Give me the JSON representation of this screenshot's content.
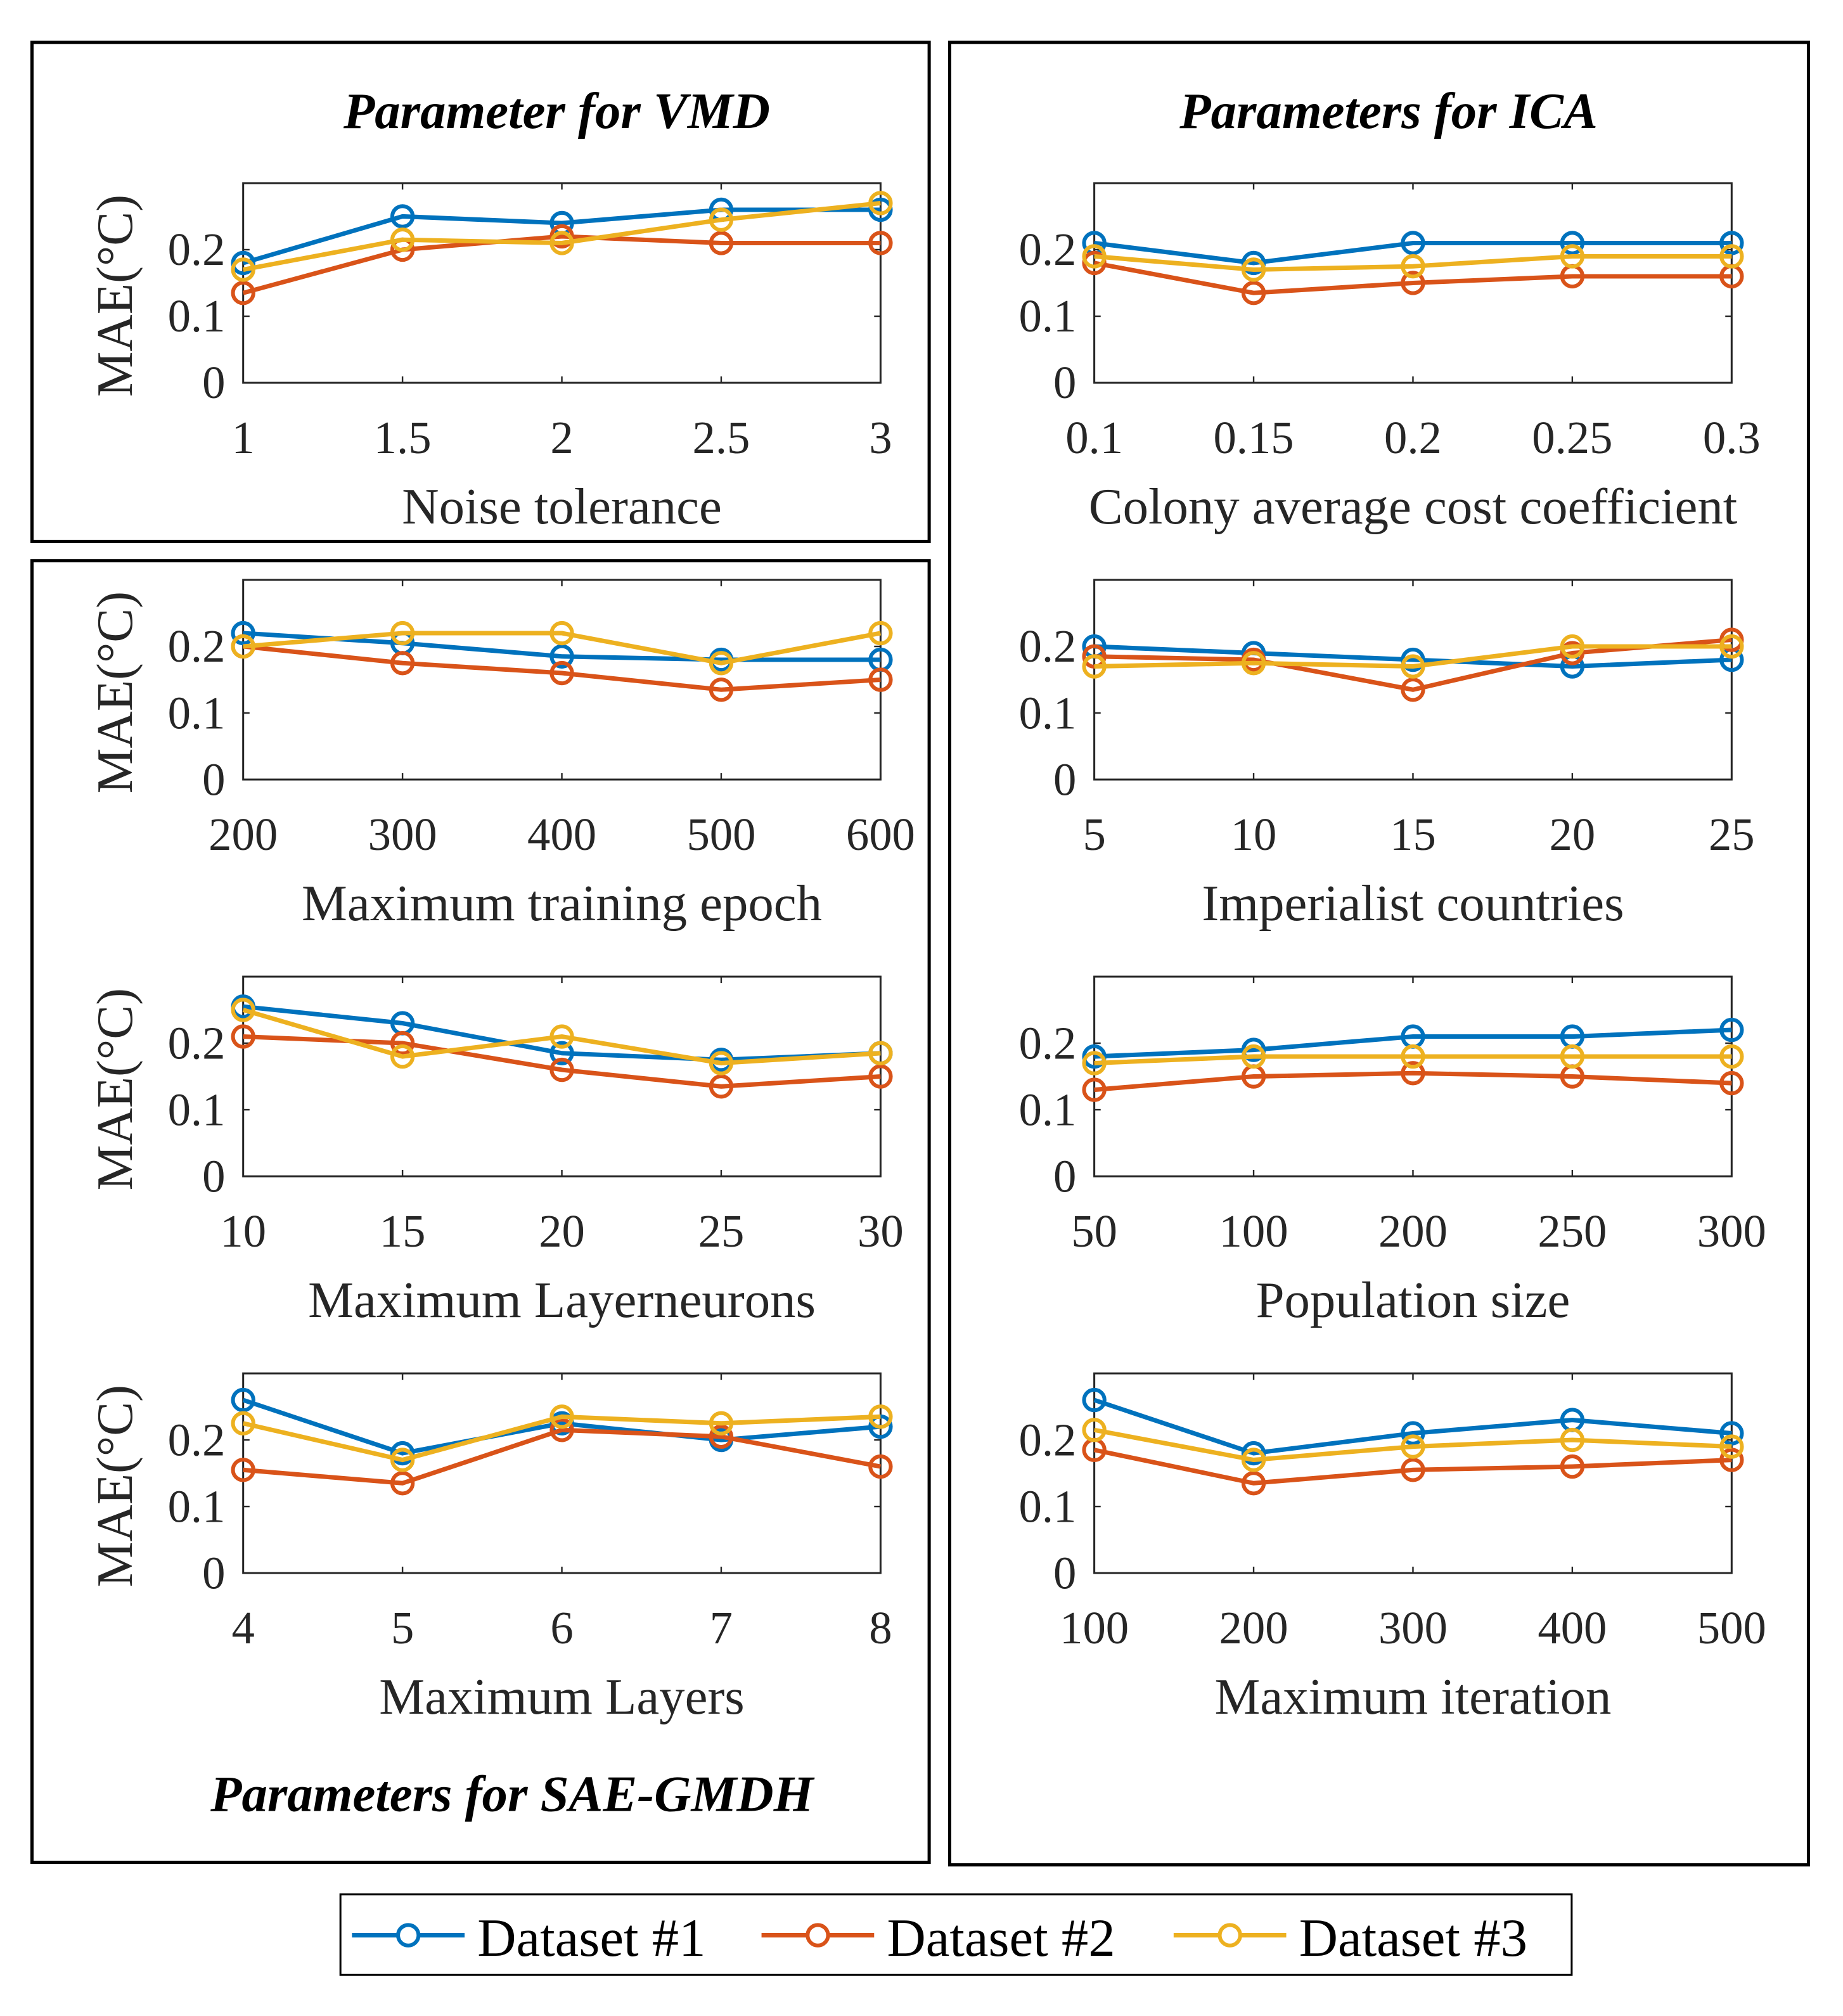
{
  "colors": {
    "Dataset #1": "#0072BD",
    "Dataset #2": "#D95319",
    "Dataset #3": "#EDB120"
  },
  "groups": {
    "vmd": "Parameter for VMD",
    "ica": "Parameters for ICA",
    "sae": "Parameters for SAE-GMDH"
  },
  "legend": [
    "Dataset #1",
    "Dataset #2",
    "Dataset #3"
  ],
  "chart_data": [
    {
      "type": "line",
      "group": "vmd",
      "xlabel": "Noise tolerance",
      "ylabel": "MAE(°C)",
      "categories": [
        "1",
        "1.5",
        "2",
        "2.5",
        "3"
      ],
      "yticks": [
        "0",
        "0.1",
        "0.2"
      ],
      "ylim": [
        0,
        0.3
      ],
      "series": [
        {
          "name": "Dataset #1",
          "values": [
            0.18,
            0.25,
            0.24,
            0.26,
            0.26
          ]
        },
        {
          "name": "Dataset #2",
          "values": [
            0.135,
            0.2,
            0.22,
            0.21,
            0.21
          ]
        },
        {
          "name": "Dataset #3",
          "values": [
            0.17,
            0.215,
            0.21,
            0.245,
            0.27
          ]
        }
      ]
    },
    {
      "type": "line",
      "group": "sae",
      "xlabel": "Maximum training epoch",
      "ylabel": "MAE(°C)",
      "categories": [
        "200",
        "300",
        "400",
        "500",
        "600"
      ],
      "yticks": [
        "0",
        "0.1",
        "0.2"
      ],
      "ylim": [
        0,
        0.3
      ],
      "series": [
        {
          "name": "Dataset #1",
          "values": [
            0.22,
            0.205,
            0.185,
            0.18,
            0.18
          ]
        },
        {
          "name": "Dataset #2",
          "values": [
            0.2,
            0.175,
            0.16,
            0.135,
            0.15
          ]
        },
        {
          "name": "Dataset #3",
          "values": [
            0.2,
            0.22,
            0.22,
            0.175,
            0.22
          ]
        }
      ]
    },
    {
      "type": "line",
      "group": "sae",
      "xlabel": "Maximum Layerneurons",
      "ylabel": "MAE(°C)",
      "categories": [
        "10",
        "15",
        "20",
        "25",
        "30"
      ],
      "yticks": [
        "0",
        "0.1",
        "0.2"
      ],
      "ylim": [
        0,
        0.3
      ],
      "series": [
        {
          "name": "Dataset #1",
          "values": [
            0.255,
            0.23,
            0.185,
            0.175,
            0.185
          ]
        },
        {
          "name": "Dataset #2",
          "values": [
            0.21,
            0.2,
            0.16,
            0.135,
            0.15
          ]
        },
        {
          "name": "Dataset #3",
          "values": [
            0.25,
            0.18,
            0.21,
            0.17,
            0.185
          ]
        }
      ]
    },
    {
      "type": "line",
      "group": "sae",
      "xlabel": "Maximum Layers",
      "ylabel": "MAE(°C)",
      "categories": [
        "4",
        "5",
        "6",
        "7",
        "8"
      ],
      "yticks": [
        "0",
        "0.1",
        "0.2"
      ],
      "ylim": [
        0,
        0.3
      ],
      "series": [
        {
          "name": "Dataset #1",
          "values": [
            0.26,
            0.18,
            0.225,
            0.2,
            0.22
          ]
        },
        {
          "name": "Dataset #2",
          "values": [
            0.155,
            0.135,
            0.215,
            0.205,
            0.16
          ]
        },
        {
          "name": "Dataset #3",
          "values": [
            0.225,
            0.17,
            0.235,
            0.225,
            0.235
          ]
        }
      ]
    },
    {
      "type": "line",
      "group": "ica",
      "xlabel": "Colony average cost coefficient",
      "ylabel": "",
      "categories": [
        "0.1",
        "0.15",
        "0.2",
        "0.25",
        "0.3"
      ],
      "yticks": [
        "0",
        "0.1",
        "0.2"
      ],
      "ylim": [
        0,
        0.3
      ],
      "series": [
        {
          "name": "Dataset #1",
          "values": [
            0.21,
            0.18,
            0.21,
            0.21,
            0.21
          ]
        },
        {
          "name": "Dataset #2",
          "values": [
            0.18,
            0.135,
            0.15,
            0.16,
            0.16
          ]
        },
        {
          "name": "Dataset #3",
          "values": [
            0.19,
            0.17,
            0.175,
            0.19,
            0.19
          ]
        }
      ]
    },
    {
      "type": "line",
      "group": "ica",
      "xlabel": "Imperialist countries",
      "ylabel": "",
      "categories": [
        "5",
        "10",
        "15",
        "20",
        "25"
      ],
      "yticks": [
        "0",
        "0.1",
        "0.2"
      ],
      "ylim": [
        0,
        0.3
      ],
      "series": [
        {
          "name": "Dataset #1",
          "values": [
            0.2,
            0.19,
            0.18,
            0.17,
            0.18
          ]
        },
        {
          "name": "Dataset #2",
          "values": [
            0.185,
            0.18,
            0.135,
            0.19,
            0.21
          ]
        },
        {
          "name": "Dataset #3",
          "values": [
            0.17,
            0.175,
            0.17,
            0.2,
            0.2
          ]
        }
      ]
    },
    {
      "type": "line",
      "group": "ica",
      "xlabel": "Population size",
      "ylabel": "",
      "categories": [
        "50",
        "100",
        "200",
        "250",
        "300"
      ],
      "yticks": [
        "0",
        "0.1",
        "0.2"
      ],
      "ylim": [
        0,
        0.3
      ],
      "series": [
        {
          "name": "Dataset #1",
          "values": [
            0.18,
            0.19,
            0.21,
            0.21,
            0.22
          ]
        },
        {
          "name": "Dataset #2",
          "values": [
            0.13,
            0.15,
            0.155,
            0.15,
            0.14
          ]
        },
        {
          "name": "Dataset #3",
          "values": [
            0.17,
            0.18,
            0.18,
            0.18,
            0.18
          ]
        }
      ]
    },
    {
      "type": "line",
      "group": "ica",
      "xlabel": "Maximum iteration",
      "ylabel": "",
      "categories": [
        "100",
        "200",
        "300",
        "400",
        "500"
      ],
      "yticks": [
        "0",
        "0.1",
        "0.2"
      ],
      "ylim": [
        0,
        0.3
      ],
      "series": [
        {
          "name": "Dataset #1",
          "values": [
            0.26,
            0.18,
            0.21,
            0.23,
            0.21
          ]
        },
        {
          "name": "Dataset #2",
          "values": [
            0.185,
            0.135,
            0.155,
            0.16,
            0.17
          ]
        },
        {
          "name": "Dataset #3",
          "values": [
            0.215,
            0.17,
            0.19,
            0.2,
            0.19
          ]
        }
      ]
    }
  ]
}
